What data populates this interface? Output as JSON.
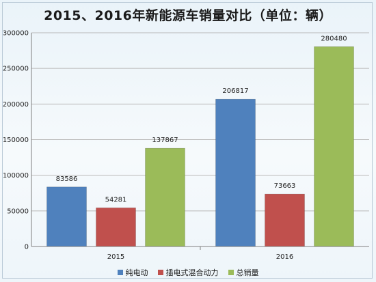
{
  "chart_data": {
    "type": "bar",
    "title": "2015、2016年新能源车销量对比（单位：辆）",
    "categories": [
      "2015",
      "2016"
    ],
    "ylim": [
      0,
      300000
    ],
    "yticks": [
      0,
      50000,
      100000,
      150000,
      200000,
      250000,
      300000
    ],
    "grid": true,
    "legend": "bottom",
    "series": [
      {
        "name": "纯电动",
        "color": "#4f81bd",
        "values": [
          83586,
          206817
        ]
      },
      {
        "name": "插电式混合动力",
        "color": "#c0504d",
        "values": [
          54281,
          73663
        ]
      },
      {
        "name": "总销量",
        "color": "#9bbb59",
        "values": [
          137867,
          280480
        ]
      }
    ]
  }
}
